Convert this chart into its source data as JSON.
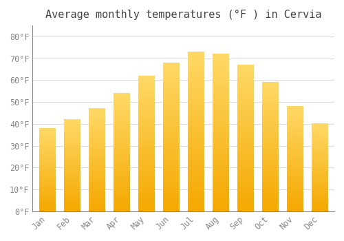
{
  "title": "Average monthly temperatures (°F ) in Cervia",
  "months": [
    "Jan",
    "Feb",
    "Mar",
    "Apr",
    "May",
    "Jun",
    "Jul",
    "Aug",
    "Sep",
    "Oct",
    "Nov",
    "Dec"
  ],
  "values": [
    38,
    42,
    47,
    54,
    62,
    68,
    73,
    72,
    67,
    59,
    48,
    40
  ],
  "bar_color_bottom": "#F5A800",
  "bar_color_top": "#FFD966",
  "yticks": [
    0,
    10,
    20,
    30,
    40,
    50,
    60,
    70,
    80
  ],
  "ytick_labels": [
    "0°F",
    "10°F",
    "20°F",
    "30°F",
    "40°F",
    "50°F",
    "60°F",
    "70°F",
    "80°F"
  ],
  "ylim": [
    0,
    85
  ],
  "background_color": "#ffffff",
  "plot_background": "#ffffff",
  "grid_color": "#dddddd",
  "title_fontsize": 11,
  "tick_fontsize": 8.5,
  "bar_width": 0.65
}
